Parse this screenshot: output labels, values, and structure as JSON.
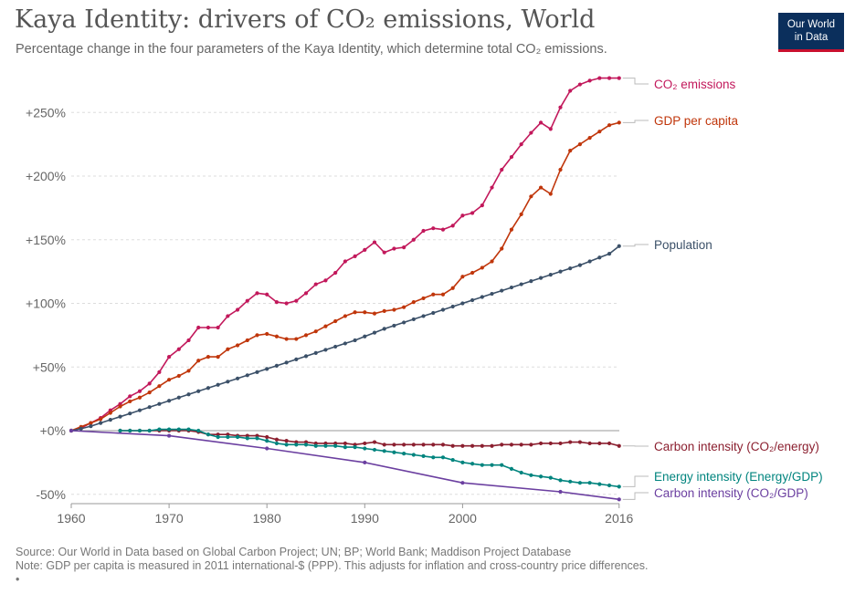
{
  "header": {
    "title": "Kaya Identity: drivers of CO₂ emissions, World",
    "subtitle": "Percentage change in the four parameters of the Kaya Identity, which determine total CO₂ emissions.",
    "logo_line1": "Our World",
    "logo_line2": "in Data"
  },
  "footer": {
    "source": "Source: Our World in Data based on Global Carbon Project; UN; BP; World Bank; Maddison Project Database",
    "note": "Note: GDP per capita is measured in 2011 international-$ (PPP). This adjusts for inflation and cross-country price differences.",
    "bullet": "•"
  },
  "chart_data": {
    "type": "line",
    "ylim": [
      -55,
      280
    ],
    "xlim": [
      1960,
      2016
    ],
    "x_ticks": [
      1960,
      1970,
      1980,
      1990,
      2000,
      2016
    ],
    "y_ticks": [
      -50,
      0,
      50,
      100,
      150,
      200,
      250
    ],
    "y_tick_labels": [
      "-50%",
      "+0%",
      "+50%",
      "+100%",
      "+150%",
      "+200%",
      "+250%"
    ],
    "grid": "horizontal dashed",
    "legend": "right (labels at line ends)",
    "series": [
      {
        "name": "CO₂ emissions",
        "color": "#c2185b",
        "x": [
          1960,
          1961,
          1962,
          1963,
          1964,
          1965,
          1966,
          1967,
          1968,
          1969,
          1970,
          1971,
          1972,
          1973,
          1974,
          1975,
          1976,
          1977,
          1978,
          1979,
          1980,
          1981,
          1982,
          1983,
          1984,
          1985,
          1986,
          1987,
          1988,
          1989,
          1990,
          1991,
          1992,
          1993,
          1994,
          1995,
          1996,
          1997,
          1998,
          1999,
          2000,
          2001,
          2002,
          2003,
          2004,
          2005,
          2006,
          2007,
          2008,
          2009,
          2010,
          2011,
          2012,
          2013,
          2014,
          2015,
          2016
        ],
        "values": [
          0,
          2,
          6,
          10,
          16,
          21,
          27,
          31,
          37,
          46,
          58,
          64,
          71,
          81,
          81,
          81,
          90,
          95,
          102,
          108,
          107,
          101,
          100,
          102,
          108,
          115,
          118,
          124,
          133,
          137,
          142,
          148,
          140,
          143,
          144,
          150,
          157,
          159,
          158,
          161,
          169,
          171,
          177,
          191,
          205,
          215,
          225,
          234,
          242,
          237,
          254,
          267,
          272,
          275,
          277,
          277,
          277
        ]
      },
      {
        "name": "GDP per capita",
        "color": "#c0360b",
        "x": [
          1960,
          1961,
          1962,
          1963,
          1964,
          1965,
          1966,
          1967,
          1968,
          1969,
          1970,
          1971,
          1972,
          1973,
          1974,
          1975,
          1976,
          1977,
          1978,
          1979,
          1980,
          1981,
          1982,
          1983,
          1984,
          1985,
          1986,
          1987,
          1988,
          1989,
          1990,
          1991,
          1992,
          1993,
          1994,
          1995,
          1996,
          1997,
          1998,
          1999,
          2000,
          2001,
          2002,
          2003,
          2004,
          2005,
          2006,
          2007,
          2008,
          2009,
          2010,
          2011,
          2012,
          2013,
          2014,
          2015,
          2016
        ],
        "values": [
          0,
          3,
          6,
          9,
          14,
          19,
          23,
          26,
          30,
          35,
          40,
          43,
          47,
          55,
          58,
          58,
          64,
          67,
          71,
          75,
          76,
          74,
          72,
          72,
          75,
          78,
          82,
          86,
          90,
          93,
          93,
          92,
          94,
          95,
          97,
          101,
          104,
          107,
          107,
          112,
          121,
          124,
          128,
          133,
          143,
          158,
          170,
          184,
          191,
          186,
          205,
          220,
          225,
          230,
          235,
          240,
          242
        ]
      },
      {
        "name": "Population",
        "color": "#3b5068",
        "x": [
          1960,
          1961,
          1962,
          1963,
          1964,
          1965,
          1966,
          1967,
          1968,
          1969,
          1970,
          1971,
          1972,
          1973,
          1974,
          1975,
          1976,
          1977,
          1978,
          1979,
          1980,
          1981,
          1982,
          1983,
          1984,
          1985,
          1986,
          1987,
          1988,
          1989,
          1990,
          1991,
          1992,
          1993,
          1994,
          1995,
          1996,
          1997,
          1998,
          1999,
          2000,
          2001,
          2002,
          2003,
          2004,
          2005,
          2006,
          2007,
          2008,
          2009,
          2010,
          2011,
          2012,
          2013,
          2014,
          2015,
          2016
        ],
        "values": [
          0,
          1.5,
          3.5,
          6,
          8.5,
          11,
          13.5,
          16,
          18.5,
          21,
          23.5,
          26,
          28.5,
          31,
          33.5,
          36,
          38.5,
          41,
          43.5,
          46,
          48.5,
          51,
          53.5,
          56,
          58.5,
          61,
          63.5,
          66,
          68.5,
          71,
          74,
          77,
          80,
          82.5,
          85,
          87.5,
          90,
          92.5,
          95,
          97.5,
          100,
          102.5,
          105,
          107.5,
          110,
          112.5,
          115,
          117.5,
          120,
          122.5,
          125,
          127.5,
          130,
          133,
          136,
          139,
          145
        ]
      },
      {
        "name": "Carbon intensity (CO₂/energy)",
        "color": "#8b1f2f",
        "x": [
          1965,
          1966,
          1967,
          1968,
          1969,
          1970,
          1971,
          1972,
          1973,
          1974,
          1975,
          1976,
          1977,
          1978,
          1979,
          1980,
          1981,
          1982,
          1983,
          1984,
          1985,
          1986,
          1987,
          1988,
          1989,
          1990,
          1991,
          1992,
          1993,
          1994,
          1995,
          1996,
          1997,
          1998,
          1999,
          2000,
          2001,
          2002,
          2003,
          2004,
          2005,
          2006,
          2007,
          2008,
          2009,
          2010,
          2011,
          2012,
          2013,
          2014,
          2015,
          2016
        ],
        "values": [
          0,
          0,
          0,
          0,
          0,
          0,
          0,
          0,
          -1,
          -3,
          -3,
          -3,
          -4,
          -4,
          -4,
          -5,
          -7,
          -8,
          -9,
          -9,
          -10,
          -10,
          -10,
          -10,
          -11,
          -10,
          -9,
          -11,
          -11,
          -11,
          -11,
          -11,
          -11,
          -11,
          -12,
          -12,
          -12,
          -12,
          -12,
          -11,
          -11,
          -11,
          -11,
          -10,
          -10,
          -10,
          -9,
          -9,
          -10,
          -10,
          -10,
          -12
        ]
      },
      {
        "name": "Energy intensity (Energy/GDP)",
        "color": "#00847e",
        "x": [
          1965,
          1966,
          1967,
          1968,
          1969,
          1970,
          1971,
          1972,
          1973,
          1974,
          1975,
          1976,
          1977,
          1978,
          1979,
          1980,
          1981,
          1982,
          1983,
          1984,
          1985,
          1986,
          1987,
          1988,
          1989,
          1990,
          1991,
          1992,
          1993,
          1994,
          1995,
          1996,
          1997,
          1998,
          1999,
          2000,
          2001,
          2002,
          2003,
          2004,
          2005,
          2006,
          2007,
          2008,
          2009,
          2010,
          2011,
          2012,
          2013,
          2014,
          2015,
          2016
        ],
        "values": [
          0,
          0,
          0,
          0,
          1,
          1,
          1,
          1,
          0,
          -3,
          -5,
          -5,
          -5,
          -6,
          -6,
          -8,
          -10,
          -11,
          -11,
          -11,
          -12,
          -12,
          -12,
          -13,
          -13,
          -14,
          -15,
          -16,
          -17,
          -18,
          -19,
          -20,
          -21,
          -21,
          -23,
          -25,
          -26,
          -27,
          -27,
          -27,
          -30,
          -33,
          -35,
          -36,
          -37,
          -39,
          -40,
          -41,
          -41,
          -42,
          -43,
          -44
        ]
      },
      {
        "name": "Carbon intensity (CO₂/GDP)",
        "color": "#6b3fa0",
        "x": [
          1960,
          1970,
          1980,
          1990,
          2000,
          2010,
          2016
        ],
        "values": [
          0,
          -4,
          -14,
          -25,
          -41,
          -48,
          -54
        ]
      }
    ]
  }
}
